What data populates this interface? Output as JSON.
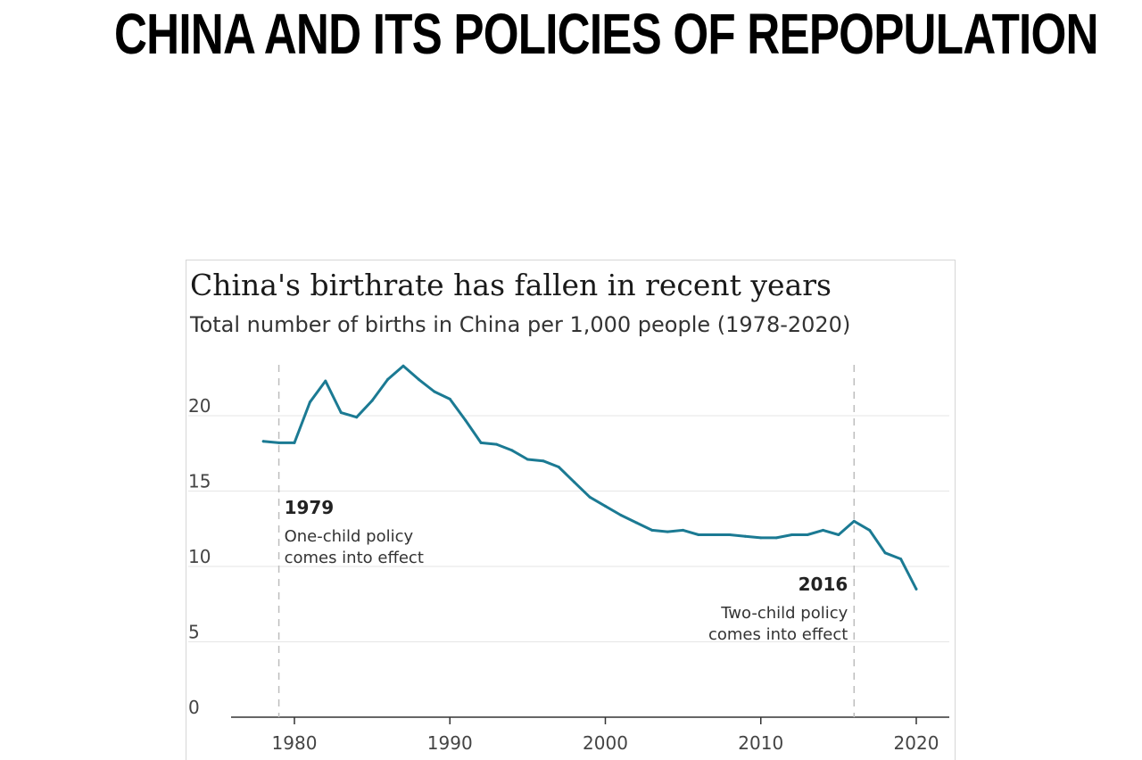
{
  "headline": "CHINA AND ITS POLICIES OF REPOPULATION",
  "chart_data": {
    "type": "line",
    "title": "China's birthrate has fallen in recent years",
    "subtitle": "Total number of births in China per 1,000 people (1978-2020)",
    "xlabel": "",
    "ylabel": "",
    "xlim": [
      1977,
      2022
    ],
    "ylim": [
      0,
      25
    ],
    "x_ticks": [
      1980,
      1990,
      2000,
      2010,
      2020
    ],
    "y_ticks": [
      0,
      5,
      10,
      15,
      20
    ],
    "grid": true,
    "line_color": "#1b7a93",
    "x": [
      1978,
      1979,
      1980,
      1981,
      1982,
      1983,
      1984,
      1985,
      1986,
      1987,
      1988,
      1989,
      1990,
      1991,
      1992,
      1993,
      1994,
      1995,
      1996,
      1997,
      1998,
      1999,
      2000,
      2001,
      2002,
      2003,
      2004,
      2005,
      2006,
      2007,
      2008,
      2009,
      2010,
      2011,
      2012,
      2013,
      2014,
      2015,
      2016,
      2017,
      2018,
      2019,
      2020
    ],
    "values": [
      18.3,
      18.2,
      18.2,
      20.9,
      22.3,
      20.2,
      19.9,
      21.0,
      22.4,
      23.3,
      22.4,
      21.6,
      21.1,
      19.7,
      18.2,
      18.1,
      17.7,
      17.1,
      17.0,
      16.6,
      15.6,
      14.6,
      14.0,
      13.4,
      12.9,
      12.4,
      12.3,
      12.4,
      12.1,
      12.1,
      12.1,
      12.0,
      11.9,
      11.9,
      12.1,
      12.1,
      12.4,
      12.1,
      13.0,
      12.4,
      10.9,
      10.5,
      8.5
    ],
    "annotations": [
      {
        "year": 1979,
        "label": "1979",
        "text_lines": [
          "One-child policy",
          "comes into effect"
        ],
        "align": "left"
      },
      {
        "year": 2016,
        "label": "2016",
        "text_lines": [
          "Two-child policy",
          "comes into effect"
        ],
        "align": "right"
      }
    ]
  }
}
